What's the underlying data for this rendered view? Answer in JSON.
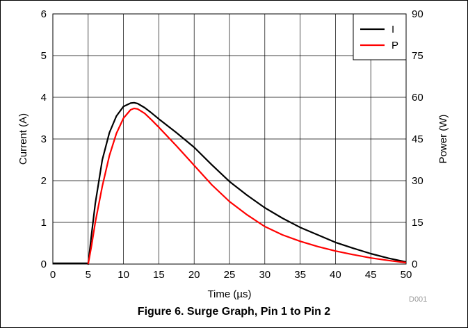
{
  "chart_data": {
    "type": "line",
    "xlabel": "Time (µs)",
    "ylabel": "Current (A)",
    "y2label": "Power (W)",
    "xlim": [
      0,
      50
    ],
    "ylim": [
      0,
      6
    ],
    "y2lim": [
      0,
      90
    ],
    "xticks": [
      "0",
      "5",
      "10",
      "15",
      "20",
      "25",
      "30",
      "35",
      "40",
      "45",
      "50"
    ],
    "yticks": [
      "0",
      "1",
      "2",
      "3",
      "4",
      "5",
      "6"
    ],
    "y2ticks": [
      "0",
      "15",
      "30",
      "45",
      "60",
      "75",
      "90"
    ],
    "grid": true,
    "legend_position": "top-right",
    "series": [
      {
        "name": "I",
        "axis": "left",
        "color": "#000000",
        "x": [
          0,
          4.9,
          5.0,
          5.5,
          6,
          7,
          8,
          9,
          10,
          11,
          11.5,
          12,
          13,
          14,
          15,
          17.5,
          20,
          22.5,
          25,
          27.5,
          30,
          32.5,
          35,
          37.5,
          40,
          42.5,
          45,
          47.5,
          50
        ],
        "y": [
          0.02,
          0.02,
          0.0,
          0.75,
          1.45,
          2.5,
          3.15,
          3.55,
          3.78,
          3.86,
          3.87,
          3.85,
          3.75,
          3.62,
          3.48,
          3.15,
          2.8,
          2.38,
          1.98,
          1.65,
          1.35,
          1.1,
          0.88,
          0.7,
          0.52,
          0.38,
          0.25,
          0.14,
          0.05
        ]
      },
      {
        "name": "P",
        "axis": "right",
        "color": "#ff0000",
        "x": [
          5.0,
          5.5,
          6,
          7,
          8,
          9,
          10,
          11,
          11.5,
          12,
          13,
          14,
          15,
          17.5,
          20,
          22.5,
          25,
          27.5,
          30,
          32.5,
          35,
          37.5,
          40,
          42.5,
          45,
          47.5,
          50
        ],
        "y": [
          0,
          7,
          15,
          28,
          39,
          47,
          52.5,
          55.5,
          56,
          55.8,
          54.2,
          51.8,
          49.2,
          42.5,
          35.5,
          28.5,
          22.5,
          17.7,
          13.5,
          10.5,
          8.2,
          6.3,
          4.7,
          3.4,
          2.2,
          1.3,
          0.5
        ]
      }
    ]
  },
  "caption": "Figure 6. Surge Graph, Pin 1 to Pin 2",
  "figure_code": "D001"
}
